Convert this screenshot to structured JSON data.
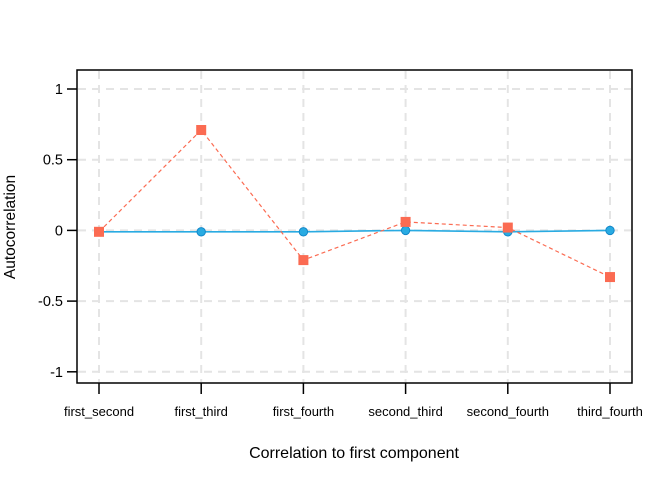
{
  "chart_data": {
    "type": "line",
    "title": "",
    "xlabel": "Correlation to first component",
    "ylabel": "Autocorrelation",
    "categories": [
      "first_second",
      "first_third",
      "first_fourth",
      "second_third",
      "second_fourth",
      "third_fourth"
    ],
    "series": [
      {
        "name": "blue-solid-circles",
        "marker": "circle",
        "line_style": "solid",
        "color": "#29ABE2",
        "marker_stroke": "#1287C9",
        "values": [
          -0.01,
          -0.01,
          -0.01,
          0,
          -0.01,
          0
        ]
      },
      {
        "name": "red-dashed-squares",
        "marker": "square",
        "line_style": "dashed",
        "color": "#FB6B52",
        "marker_stroke": "#FB6B52",
        "values": [
          -0.01,
          0.71,
          -0.21,
          0.06,
          0.02,
          -0.33
        ]
      }
    ],
    "yticks": [
      1,
      0.5,
      0,
      -0.5,
      -1
    ],
    "ytick_labels": [
      "1",
      "0.5",
      "0",
      "-0.5",
      "-1"
    ],
    "ylim": [
      -1.08,
      1.14
    ],
    "grid": true,
    "grid_color": "#E4E4E4",
    "axis_color": "#000000",
    "background": "#FFFFFF"
  }
}
